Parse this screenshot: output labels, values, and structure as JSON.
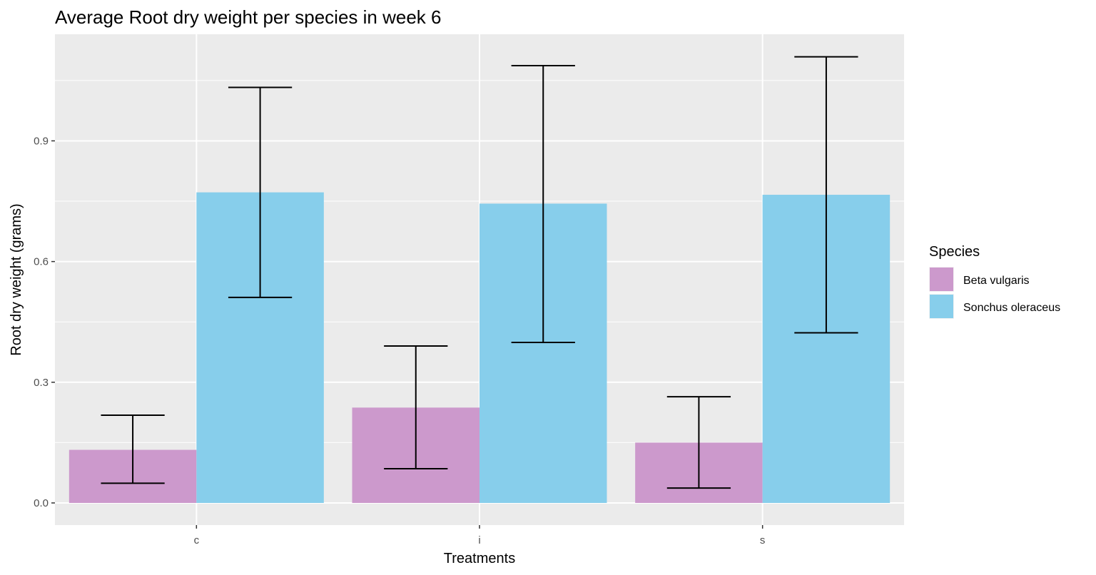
{
  "chart_data": {
    "type": "bar",
    "title": "Average Root dry weight per species in week 6",
    "xlabel": "Treatments",
    "ylabel": "Root dry weight (grams)",
    "categories": [
      "c",
      "i",
      "s"
    ],
    "ylim": [
      -0.055,
      1.165
    ],
    "yticks": [
      0.0,
      0.3,
      0.6,
      0.9
    ],
    "ytick_labels": [
      "0.0",
      "0.3",
      "0.6",
      "0.9"
    ],
    "grid": true,
    "legend": {
      "title": "Species",
      "position": "right"
    },
    "panel_background": "#ebebeb",
    "gridline_color": "#ffffff",
    "errorbar_color": "#000000",
    "series": [
      {
        "name": "Beta vulgaris",
        "color": "#cc99cc",
        "values": [
          0.132,
          0.237,
          0.15
        ],
        "error_low": [
          0.049,
          0.085,
          0.037
        ],
        "error_high": [
          0.218,
          0.39,
          0.264
        ]
      },
      {
        "name": "Sonchus oleraceus",
        "color": "#87ceeb",
        "values": [
          0.772,
          0.744,
          0.766
        ],
        "error_low": [
          0.511,
          0.399,
          0.423
        ],
        "error_high": [
          1.033,
          1.087,
          1.109
        ]
      }
    ]
  }
}
